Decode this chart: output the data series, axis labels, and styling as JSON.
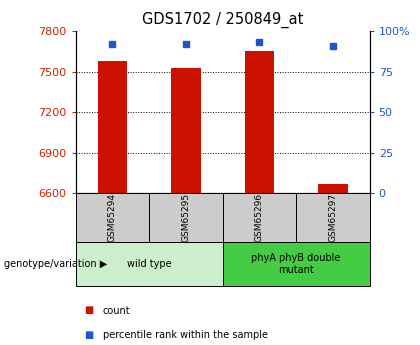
{
  "title": "GDS1702 / 250849_at",
  "samples": [
    "GSM65294",
    "GSM65295",
    "GSM65296",
    "GSM65297"
  ],
  "count_values": [
    7580,
    7530,
    7650,
    6670
  ],
  "percentile_values": [
    92,
    92,
    93,
    91
  ],
  "ylim_left": [
    6600,
    7800
  ],
  "ylim_right": [
    0,
    100
  ],
  "yticks_left": [
    6600,
    6900,
    7200,
    7500,
    7800
  ],
  "yticks_right": [
    0,
    25,
    50,
    75,
    100
  ],
  "ytick_labels_left": [
    "6600",
    "6900",
    "7200",
    "7500",
    "7800"
  ],
  "ytick_labels_right": [
    "0",
    "25",
    "50",
    "75",
    "100%"
  ],
  "groups": [
    {
      "label": "wild type",
      "samples": [
        0,
        1
      ],
      "color": "#cceecc"
    },
    {
      "label": "phyA phyB double\nmutant",
      "samples": [
        2,
        3
      ],
      "color": "#44cc44"
    }
  ],
  "bar_color": "#cc1100",
  "dot_color": "#2255cc",
  "bar_width": 0.4,
  "left_tick_color": "#cc2200",
  "right_tick_color": "#2255cc",
  "legend_items": [
    {
      "label": "count",
      "color": "#cc1100"
    },
    {
      "label": "percentile rank within the sample",
      "color": "#2255cc"
    }
  ],
  "genotype_label": "genotype/variation",
  "sample_box_color": "#cccccc",
  "title_fontsize": 10.5,
  "tick_fontsize": 8,
  "grid_yticks": [
    6900,
    7200,
    7500
  ]
}
